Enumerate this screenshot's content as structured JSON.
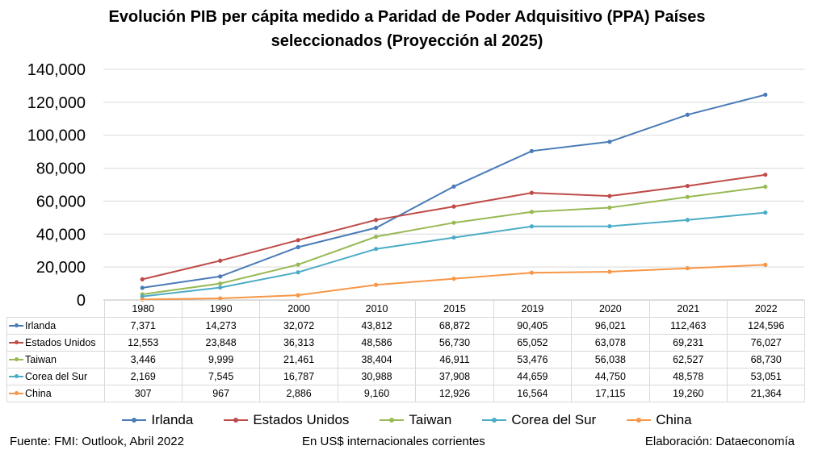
{
  "chart_data": {
    "type": "line",
    "title_line1": "Evolución PIB per cápita medido a Paridad de Poder Adquisitivo (PPA)  Países",
    "title_line2": "seleccionados (Proyección al 2025)",
    "categories": [
      "1980",
      "1990",
      "2000",
      "2010",
      "2015",
      "2019",
      "2020",
      "2021",
      "2022"
    ],
    "ylim": [
      0,
      140000
    ],
    "y_ticks": [
      "0",
      "20,000",
      "40,000",
      "60,000",
      "80,000",
      "100,000",
      "120,000",
      "140,000"
    ],
    "grid": true,
    "legend_position": "bottom",
    "series": [
      {
        "name": "Irlanda",
        "color": "#4a7bb7",
        "values": [
          7371,
          14273,
          32072,
          43812,
          68872,
          90405,
          96021,
          112463,
          124596
        ],
        "labels": [
          "7,371",
          "14,273",
          "32,072",
          "43,812",
          "68,872",
          "90,405",
          "96,021",
          "112,463",
          "124,596"
        ]
      },
      {
        "name": "Estados Unidos",
        "color": "#be4b48",
        "values": [
          12553,
          23848,
          36313,
          48586,
          56730,
          65052,
          63078,
          69231,
          76027
        ],
        "labels": [
          "12,553",
          "23,848",
          "36,313",
          "48,586",
          "56,730",
          "65,052",
          "63,078",
          "69,231",
          "76,027"
        ]
      },
      {
        "name": "Taiwan",
        "color": "#98b954",
        "values": [
          3446,
          9999,
          21461,
          38404,
          46911,
          53476,
          56038,
          62527,
          68730
        ],
        "labels": [
          "3,446",
          "9,999",
          "21,461",
          "38,404",
          "46,911",
          "53,476",
          "56,038",
          "62,527",
          "68,730"
        ]
      },
      {
        "name": "Corea del Sur",
        "color": "#4bacc6",
        "values": [
          2169,
          7545,
          16787,
          30988,
          37908,
          44659,
          44750,
          48578,
          53051
        ],
        "labels": [
          "2,169",
          "7,545",
          "16,787",
          "30,988",
          "37,908",
          "44,659",
          "44,750",
          "48,578",
          "53,051"
        ]
      },
      {
        "name": "China",
        "color": "#f79646",
        "values": [
          307,
          967,
          2886,
          9160,
          12926,
          16564,
          17115,
          19260,
          21364
        ],
        "labels": [
          "307",
          "967",
          "2,886",
          "9,160",
          "12,926",
          "16,564",
          "17,115",
          "19,260",
          "21,364"
        ]
      }
    ]
  },
  "footer": {
    "source": "Fuente: FMI: Outlook, Abril 2022",
    "units": "En US$ internacionales corrientes",
    "credit": "Elaboración: Dataeconomía"
  }
}
